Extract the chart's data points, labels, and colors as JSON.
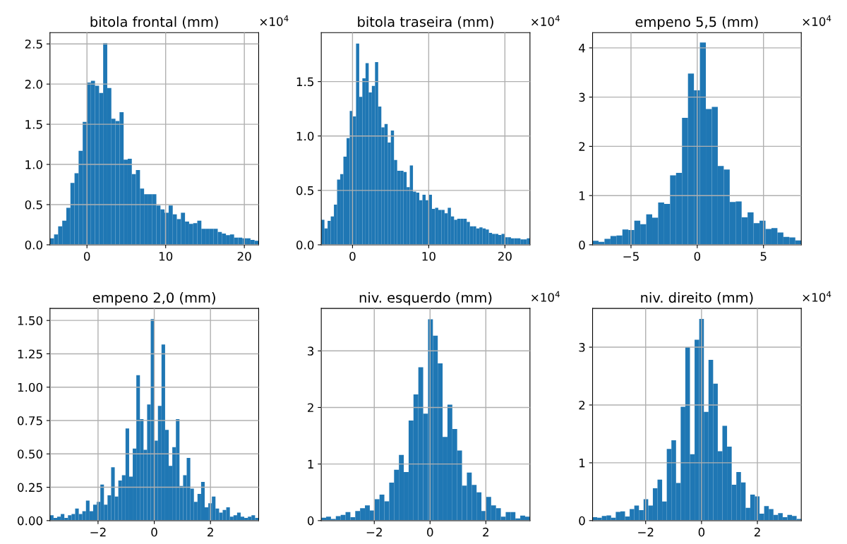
{
  "chart_data": [
    {
      "type": "histogram",
      "title": "bitola frontal (mm)",
      "color": "#1f77b4",
      "grid": true,
      "annotations": [
        "×10$^{4}$"
      ],
      "xlim": [
        -4.7,
        21.82
      ],
      "ylim": [
        0,
        2.64
      ],
      "xticks": [
        0,
        10,
        20
      ],
      "yticks": [
        {
          "value": 0,
          "label": "0.0"
        },
        {
          "value": 0.5,
          "label": "0.5"
        },
        {
          "value": 1,
          "label": "1.0"
        },
        {
          "value": 1.5,
          "label": "1.5"
        },
        {
          "value": 2,
          "label": "2.0"
        },
        {
          "value": 2.5,
          "label": "2.5"
        }
      ],
      "bins": [
        -4.7,
        -4.18,
        -3.66,
        -3.14,
        -2.62,
        -2.1,
        -1.58,
        -1.06,
        -0.54,
        -0.02,
        0.5,
        1.02,
        1.54,
        2.06,
        2.58,
        3.1,
        3.62,
        4.14,
        4.66,
        5.18,
        5.7,
        6.22,
        6.74,
        7.26,
        7.78,
        8.3,
        8.82,
        9.34,
        9.86,
        10.38,
        10.9,
        11.42,
        11.94,
        12.46,
        12.98,
        13.5,
        14.02,
        14.54,
        15.06,
        15.58,
        16.1,
        16.62,
        17.14,
        17.66,
        18.18,
        18.7,
        19.22,
        19.74,
        20.26,
        20.78,
        21.3,
        21.82
      ],
      "values": [
        0.08,
        0.13,
        0.23,
        0.3,
        0.46,
        0.77,
        0.89,
        1.17,
        1.53,
        2.02,
        2.04,
        1.98,
        1.89,
        2.51,
        1.95,
        1.57,
        1.54,
        1.65,
        1.06,
        1.07,
        0.88,
        0.93,
        0.7,
        0.63,
        0.63,
        0.63,
        0.49,
        0.44,
        0.4,
        0.49,
        0.38,
        0.32,
        0.4,
        0.29,
        0.26,
        0.27,
        0.3,
        0.2,
        0.2,
        0.2,
        0.2,
        0.16,
        0.14,
        0.12,
        0.13,
        0.09,
        0.09,
        0.08,
        0.08,
        0.06,
        0.05
      ]
    },
    {
      "type": "histogram",
      "title": "bitola traseira (mm)",
      "color": "#1f77b4",
      "grid": true,
      "annotations": [
        "×10$^{4}$"
      ],
      "xlim": [
        -4.1,
        23.29
      ],
      "ylim": [
        0,
        1.95
      ],
      "xticks": [
        0,
        10,
        20
      ],
      "yticks": [
        {
          "value": 0,
          "label": "0.0"
        },
        {
          "value": 0.5,
          "label": "0.5"
        },
        {
          "value": 1,
          "label": "1.0"
        },
        {
          "value": 1.5,
          "label": "1.5"
        }
      ],
      "bins": [
        -4.1,
        -3.685,
        -3.27,
        -2.855,
        -2.44,
        -2.025,
        -1.61,
        -1.195,
        -0.78,
        -0.365,
        0.05,
        0.465,
        0.88,
        1.295,
        1.71,
        2.125,
        2.54,
        2.955,
        3.37,
        3.785,
        4.2,
        4.615,
        5.03,
        5.445,
        5.86,
        6.275,
        6.69,
        7.105,
        7.52,
        7.935,
        8.35,
        8.765,
        9.18,
        9.595,
        10.01,
        10.425,
        10.84,
        11.255,
        11.67,
        12.085,
        12.5,
        12.915,
        13.33,
        13.745,
        14.16,
        14.575,
        14.99,
        15.405,
        15.82,
        16.235,
        16.65,
        17.065,
        17.48,
        17.895,
        18.31,
        18.725,
        19.14,
        19.555,
        19.97,
        20.385,
        20.8,
        21.215,
        21.63,
        22.045,
        22.46,
        22.875,
        23.29
      ],
      "values": [
        0.23,
        0.15,
        0.22,
        0.26,
        0.37,
        0.6,
        0.65,
        0.81,
        0.98,
        1.23,
        1.18,
        1.85,
        1.36,
        1.53,
        1.67,
        1.4,
        1.46,
        1.68,
        1.27,
        1.08,
        1.11,
        0.94,
        1.05,
        0.78,
        0.68,
        0.68,
        0.67,
        0.53,
        0.73,
        0.49,
        0.48,
        0.41,
        0.46,
        0.41,
        0.46,
        0.33,
        0.34,
        0.32,
        0.32,
        0.29,
        0.34,
        0.26,
        0.23,
        0.24,
        0.24,
        0.24,
        0.21,
        0.17,
        0.17,
        0.15,
        0.16,
        0.15,
        0.14,
        0.11,
        0.1,
        0.1,
        0.09,
        0.1,
        0.07,
        0.07,
        0.06,
        0.06,
        0.06,
        0.05,
        0.05,
        0.06
      ]
    },
    {
      "type": "histogram",
      "title": "empeno 5,5 (mm)",
      "color": "#1f77b4",
      "grid": true,
      "annotations": [
        "×10$^{4}$"
      ],
      "xlim": [
        -7.9,
        7.85
      ],
      "ylim": [
        0,
        4.31
      ],
      "xticks": [
        -5,
        0,
        5
      ],
      "yticks": [
        0,
        1,
        2,
        3,
        4
      ],
      "bins": [
        -7.9,
        -7.45,
        -7.0,
        -6.55,
        -6.1,
        -5.65,
        -5.2,
        -4.75,
        -4.3,
        -3.85,
        -3.4,
        -2.95,
        -2.5,
        -2.05,
        -1.6,
        -1.15,
        -0.7,
        -0.25,
        0.2,
        0.65,
        1.1,
        1.55,
        2.0,
        2.45,
        2.9,
        3.35,
        3.8,
        4.25,
        4.7,
        5.15,
        5.6,
        6.05,
        6.5,
        6.95,
        7.4,
        7.85
      ],
      "values": [
        0.08,
        0.06,
        0.12,
        0.18,
        0.19,
        0.31,
        0.3,
        0.49,
        0.42,
        0.62,
        0.55,
        0.86,
        0.83,
        1.41,
        1.46,
        2.58,
        3.48,
        3.14,
        4.11,
        2.76,
        2.8,
        1.6,
        1.53,
        0.87,
        0.88,
        0.56,
        0.66,
        0.44,
        0.49,
        0.32,
        0.34,
        0.25,
        0.16,
        0.15,
        0.09
      ]
    },
    {
      "type": "histogram",
      "title": "empeno 2,0 (mm)",
      "color": "#1f77b4",
      "grid": true,
      "xlim": [
        -3.71,
        3.714
      ],
      "ylim": [
        0,
        1.59
      ],
      "xticks": [
        -2,
        0,
        2
      ],
      "yticks": [
        {
          "value": 0,
          "label": "0.00"
        },
        {
          "value": 0.25,
          "label": "0.25"
        },
        {
          "value": 0.5,
          "label": "0.50"
        },
        {
          "value": 0.75,
          "label": "0.75"
        },
        {
          "value": 1,
          "label": "1.00"
        },
        {
          "value": 1.25,
          "label": "1.25"
        },
        {
          "value": 1.5,
          "label": "1.50"
        }
      ],
      "bins": [
        -3.71,
        -3.582,
        -3.454,
        -3.326,
        -3.198,
        -3.07,
        -2.942,
        -2.814,
        -2.686,
        -2.558,
        -2.43,
        -2.302,
        -2.174,
        -2.046,
        -1.918,
        -1.79,
        -1.662,
        -1.534,
        -1.406,
        -1.278,
        -1.15,
        -1.022,
        -0.894,
        -0.766,
        -0.638,
        -0.51,
        -0.382,
        -0.254,
        -0.126,
        0.002,
        0.13,
        0.258,
        0.386,
        0.514,
        0.642,
        0.77,
        0.898,
        1.026,
        1.154,
        1.282,
        1.41,
        1.538,
        1.666,
        1.794,
        1.922,
        2.05,
        2.178,
        2.306,
        2.434,
        2.562,
        2.69,
        2.818,
        2.946,
        3.074,
        3.202,
        3.33,
        3.458,
        3.586,
        3.714
      ],
      "values": [
        0.04,
        0.02,
        0.03,
        0.05,
        0.02,
        0.04,
        0.05,
        0.09,
        0.05,
        0.07,
        0.15,
        0.07,
        0.12,
        0.14,
        0.27,
        0.12,
        0.19,
        0.4,
        0.18,
        0.3,
        0.34,
        0.69,
        0.33,
        0.54,
        1.09,
        0.76,
        0.53,
        0.87,
        1.51,
        0.6,
        0.86,
        1.32,
        0.68,
        0.41,
        0.55,
        0.76,
        0.26,
        0.34,
        0.47,
        0.24,
        0.14,
        0.2,
        0.29,
        0.1,
        0.13,
        0.18,
        0.09,
        0.06,
        0.08,
        0.1,
        0.03,
        0.04,
        0.06,
        0.03,
        0.02,
        0.03,
        0.04,
        0.02
      ]
    },
    {
      "type": "histogram",
      "title": "niv. esquerdo (mm)",
      "color": "#1f77b4",
      "grid": true,
      "annotations": [
        "×10$^{4}$"
      ],
      "xlim": [
        -3.9,
        3.582
      ],
      "ylim": [
        0,
        3.75
      ],
      "xticks": [
        -2,
        0,
        2
      ],
      "yticks": [
        0,
        1,
        2,
        3
      ],
      "bins": [
        -3.9,
        -3.726,
        -3.552,
        -3.378,
        -3.204,
        -3.03,
        -2.856,
        -2.682,
        -2.508,
        -2.334,
        -2.16,
        -1.986,
        -1.812,
        -1.638,
        -1.464,
        -1.29,
        -1.116,
        -0.942,
        -0.768,
        -0.594,
        -0.42,
        -0.246,
        -0.072,
        0.102,
        0.276,
        0.45,
        0.624,
        0.798,
        0.972,
        1.146,
        1.32,
        1.494,
        1.668,
        1.842,
        2.016,
        2.19,
        2.364,
        2.538,
        2.712,
        2.886,
        3.06,
        3.234,
        3.408,
        3.582
      ],
      "values": [
        0.05,
        0.07,
        0.03,
        0.08,
        0.1,
        0.15,
        0.06,
        0.17,
        0.22,
        0.27,
        0.18,
        0.38,
        0.46,
        0.34,
        0.67,
        0.9,
        1.16,
        0.86,
        1.77,
        2.23,
        2.71,
        1.89,
        3.56,
        3.27,
        2.78,
        1.48,
        2.05,
        1.62,
        1.24,
        0.62,
        0.85,
        0.63,
        0.5,
        0.17,
        0.42,
        0.27,
        0.22,
        0.07,
        0.15,
        0.15,
        0.04,
        0.09,
        0.07
      ]
    },
    {
      "type": "histogram",
      "title": "niv. direito (mm)",
      "color": "#1f77b4",
      "grid": true,
      "annotations": [
        "×10$^{4}$"
      ],
      "xlim": [
        -3.9,
        3.57
      ],
      "ylim": [
        0,
        3.67
      ],
      "xticks": [
        -2,
        0,
        2
      ],
      "yticks": [
        0,
        1,
        2,
        3
      ],
      "bins": [
        -3.9,
        -3.734,
        -3.568,
        -3.402,
        -3.236,
        -3.07,
        -2.904,
        -2.738,
        -2.572,
        -2.406,
        -2.24,
        -2.074,
        -1.908,
        -1.742,
        -1.576,
        -1.41,
        -1.244,
        -1.078,
        -0.912,
        -0.746,
        -0.58,
        -0.414,
        -0.248,
        -0.082,
        0.084,
        0.25,
        0.416,
        0.582,
        0.748,
        0.914,
        1.08,
        1.246,
        1.412,
        1.578,
        1.744,
        1.91,
        2.076,
        2.242,
        2.408,
        2.574,
        2.74,
        2.906,
        3.072,
        3.238,
        3.404,
        3.57
      ],
      "values": [
        0.06,
        0.05,
        0.08,
        0.09,
        0.05,
        0.15,
        0.16,
        0.07,
        0.2,
        0.26,
        0.18,
        0.37,
        0.26,
        0.56,
        0.71,
        0.33,
        1.24,
        1.39,
        0.65,
        1.97,
        3.0,
        1.15,
        3.13,
        3.49,
        1.88,
        2.78,
        2.37,
        1.2,
        1.64,
        1.28,
        0.62,
        0.84,
        0.66,
        0.22,
        0.45,
        0.42,
        0.12,
        0.25,
        0.2,
        0.1,
        0.13,
        0.06,
        0.1,
        0.08,
        0.03
      ]
    }
  ]
}
